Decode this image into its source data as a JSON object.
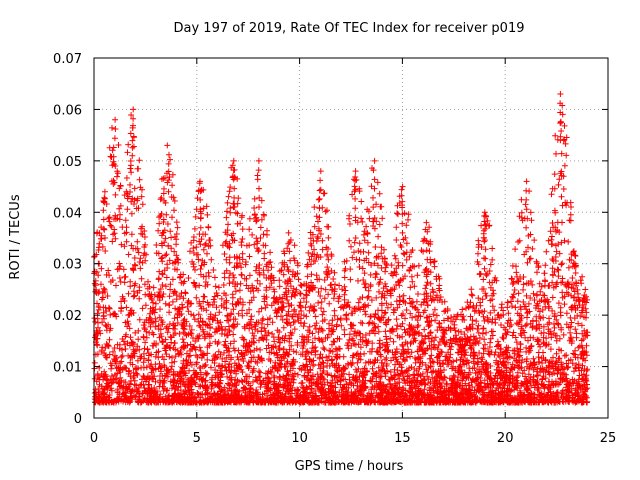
{
  "chart_data": {
    "type": "scatter",
    "title": "Day 197 of 2019, Rate Of TEC Index for receiver p019",
    "xlabel": "GPS time / hours",
    "ylabel": "ROTI / TECUs",
    "xlim": [
      0,
      25
    ],
    "ylim": [
      0,
      0.07
    ],
    "x_ticks": [
      0,
      5,
      10,
      15,
      20,
      25
    ],
    "y_ticks": [
      0,
      0.01,
      0.02,
      0.03,
      0.04,
      0.05,
      0.06,
      0.07
    ],
    "x_tick_labels": [
      "0",
      "5",
      "10",
      "15",
      "20",
      "25"
    ],
    "y_tick_labels": [
      "0",
      "0.01",
      "0.02",
      "0.03",
      "0.04",
      "0.05",
      "0.06",
      "0.07"
    ],
    "grid": true,
    "marker": "+",
    "color": "#ff0000",
    "series": [
      {
        "x_range": [
          0,
          24
        ],
        "approx_points": 6000,
        "baseline": 0.003,
        "typical_max": 0.02,
        "peaks": [
          {
            "x": 0.5,
            "y": 0.044
          },
          {
            "x": 1.0,
            "y": 0.058
          },
          {
            "x": 1.9,
            "y": 0.06
          },
          {
            "x": 3.6,
            "y": 0.053
          },
          {
            "x": 5.2,
            "y": 0.046
          },
          {
            "x": 6.8,
            "y": 0.05
          },
          {
            "x": 8.0,
            "y": 0.05
          },
          {
            "x": 9.5,
            "y": 0.036
          },
          {
            "x": 11.0,
            "y": 0.048
          },
          {
            "x": 12.7,
            "y": 0.048
          },
          {
            "x": 13.6,
            "y": 0.05
          },
          {
            "x": 15.0,
            "y": 0.045
          },
          {
            "x": 16.2,
            "y": 0.038
          },
          {
            "x": 19.0,
            "y": 0.04
          },
          {
            "x": 21.0,
            "y": 0.046
          },
          {
            "x": 22.7,
            "y": 0.063
          },
          {
            "x": 23.4,
            "y": 0.03
          }
        ]
      }
    ]
  }
}
